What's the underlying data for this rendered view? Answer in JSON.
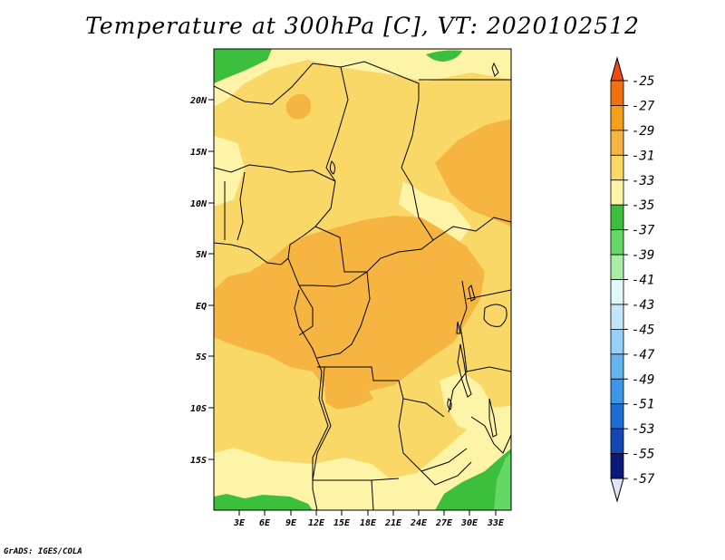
{
  "title": "Temperature at 300hPa [C], VT: 2020102512",
  "credit": "GrADS: IGES/COLA",
  "map": {
    "variable": "Temperature",
    "level": "300hPa",
    "units": "C",
    "valid_time": "2020102512",
    "lat_labels": [
      "20N",
      "15N",
      "10N",
      "5N",
      "EQ",
      "5S",
      "10S",
      "15S"
    ],
    "lon_labels": [
      "3E",
      "6E",
      "9E",
      "12E",
      "15E",
      "18E",
      "21E",
      "24E",
      "27E",
      "30E",
      "33E"
    ]
  },
  "colorbar": {
    "levels": [
      "-25",
      "-27",
      "-29",
      "-31",
      "-33",
      "-35",
      "-37",
      "-39",
      "-41",
      "-43",
      "-45",
      "-47",
      "-49",
      "-51",
      "-53",
      "-55",
      "-57"
    ],
    "colors": [
      "#f04a10",
      "#f07010",
      "#f4a018",
      "#f6b440",
      "#fad868",
      "#fdf4a8",
      "#3cbf3c",
      "#64d764",
      "#a8eca8",
      "#e0f8f8",
      "#c4e4f8",
      "#96d0f8",
      "#64b4f0",
      "#3c96e8",
      "#1e6ed8",
      "#1446b4",
      "#0a1a78",
      "#e4e4f8"
    ]
  },
  "colors": {
    "c_31_29": "#f6b440",
    "c_33_31": "#fad868",
    "c_35_33": "#fdf4a8",
    "c_37_35": "#3cbf3c",
    "c_39_37": "#64d764",
    "border": "#000000"
  }
}
